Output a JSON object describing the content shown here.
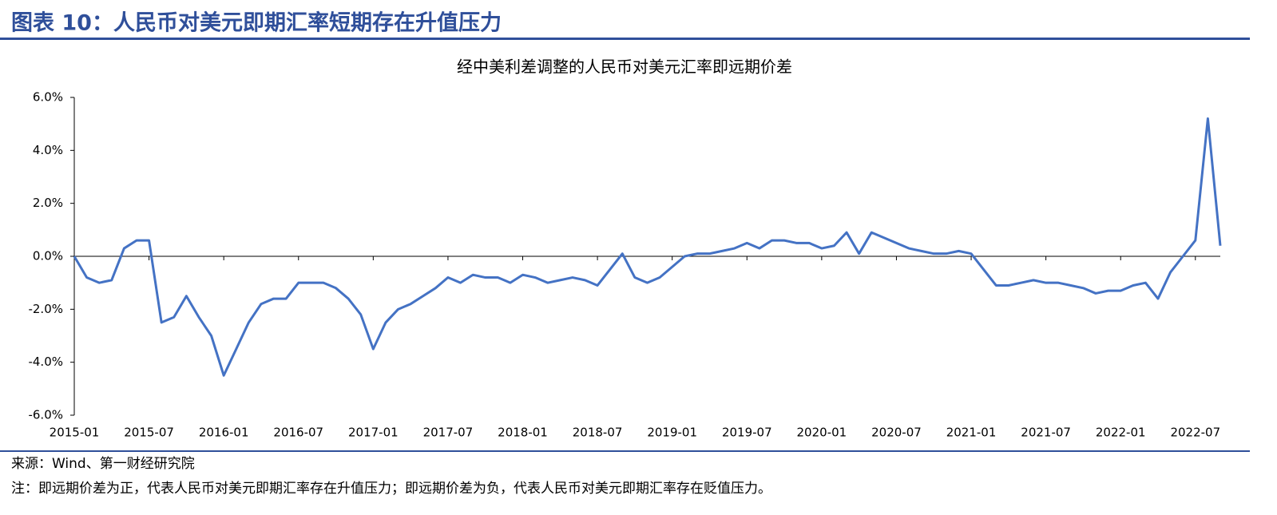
{
  "header": {
    "title": "图表 10：人民币对美元即期汇率短期存在升值压力"
  },
  "chart_data": {
    "type": "line",
    "title": "经中美利差调整的人民币对美元汇率即远期价差",
    "x": [
      "2015-01",
      "2015-02",
      "2015-03",
      "2015-04",
      "2015-05",
      "2015-06",
      "2015-07",
      "2015-08",
      "2015-09",
      "2015-10",
      "2015-11",
      "2015-12",
      "2016-01",
      "2016-02",
      "2016-03",
      "2016-04",
      "2016-05",
      "2016-06",
      "2016-07",
      "2016-08",
      "2016-09",
      "2016-10",
      "2016-11",
      "2016-12",
      "2017-01",
      "2017-02",
      "2017-03",
      "2017-04",
      "2017-05",
      "2017-06",
      "2017-07",
      "2017-08",
      "2017-09",
      "2017-10",
      "2017-11",
      "2017-12",
      "2018-01",
      "2018-02",
      "2018-03",
      "2018-04",
      "2018-05",
      "2018-06",
      "2018-07",
      "2018-08",
      "2018-09",
      "2018-10",
      "2018-11",
      "2018-12",
      "2019-01",
      "2019-02",
      "2019-03",
      "2019-04",
      "2019-05",
      "2019-06",
      "2019-07",
      "2019-08",
      "2019-09",
      "2019-10",
      "2019-11",
      "2019-12",
      "2020-01",
      "2020-02",
      "2020-03",
      "2020-04",
      "2020-05",
      "2020-06",
      "2020-07",
      "2020-08",
      "2020-09",
      "2020-10",
      "2020-11",
      "2020-12",
      "2021-01",
      "2021-02",
      "2021-03",
      "2021-04",
      "2021-05",
      "2021-06",
      "2021-07",
      "2021-08",
      "2021-09",
      "2021-10",
      "2021-11",
      "2021-12",
      "2022-01",
      "2022-02",
      "2022-03",
      "2022-04",
      "2022-05",
      "2022-06",
      "2022-07",
      "2022-08",
      "2022-09"
    ],
    "series": [
      {
        "color": "#4472c4",
        "values": [
          0.0,
          -0.8,
          -1.0,
          -0.9,
          0.3,
          0.6,
          0.6,
          -2.5,
          -2.3,
          -1.5,
          -2.3,
          -3.0,
          -4.5,
          -3.5,
          -2.5,
          -1.8,
          -1.6,
          -1.6,
          -1.0,
          -1.0,
          -1.0,
          -1.2,
          -1.6,
          -2.2,
          -3.5,
          -2.5,
          -2.0,
          -1.8,
          -1.5,
          -1.2,
          -0.8,
          -1.0,
          -0.7,
          -0.8,
          -0.8,
          -1.0,
          -0.7,
          -0.8,
          -1.0,
          -0.9,
          -0.8,
          -0.9,
          -1.1,
          -0.5,
          0.1,
          -0.8,
          -1.0,
          -0.8,
          -0.4,
          0.0,
          0.1,
          0.1,
          0.2,
          0.3,
          0.5,
          0.3,
          0.6,
          0.6,
          0.5,
          0.5,
          0.3,
          0.4,
          0.9,
          0.1,
          0.9,
          0.7,
          0.5,
          0.3,
          0.2,
          0.1,
          0.1,
          0.2,
          0.1,
          -0.5,
          -1.1,
          -1.1,
          -1.0,
          -0.9,
          -1.0,
          -1.0,
          -1.1,
          -1.2,
          -1.4,
          -1.3,
          -1.3,
          -1.1,
          -1.0,
          -1.6,
          -0.6,
          0.0,
          0.6,
          5.2,
          0.4
        ]
      }
    ],
    "xlim": [
      "2015-01",
      "2022-09"
    ],
    "xticks": [
      "2015-01",
      "2015-07",
      "2016-01",
      "2016-07",
      "2017-01",
      "2017-07",
      "2018-01",
      "2018-07",
      "2019-01",
      "2019-07",
      "2020-01",
      "2020-07",
      "2021-01",
      "2021-07",
      "2022-01",
      "2022-07"
    ],
    "ylim": [
      -6,
      6
    ],
    "yticks": [
      {
        "value": -6,
        "label": "-6.0%"
      },
      {
        "value": -4,
        "label": "-4.0%"
      },
      {
        "value": -2,
        "label": "-2.0%"
      },
      {
        "value": 0,
        "label": "0.0%"
      },
      {
        "value": 2,
        "label": "2.0%"
      },
      {
        "value": 4,
        "label": "4.0%"
      },
      {
        "value": 6,
        "label": "6.0%"
      }
    ]
  },
  "footer": {
    "source": "来源：Wind、第一财经研究院",
    "note": "注：即远期价差为正，代表人民币对美元即期汇率存在升值压力；即远期价差为负，代表人民币对美元即期汇率存在贬值压力。"
  }
}
